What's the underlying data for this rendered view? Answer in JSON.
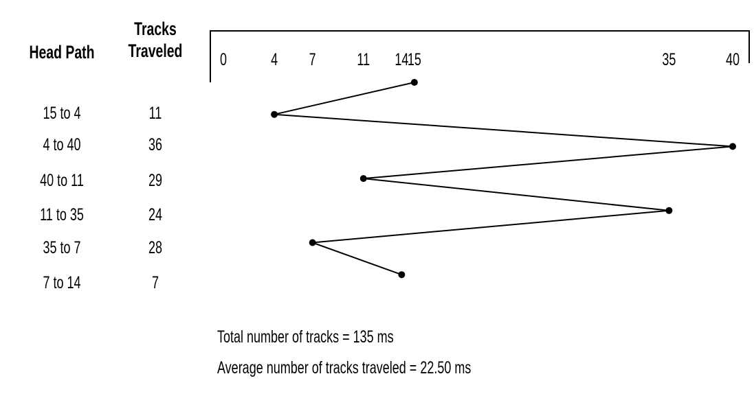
{
  "table": {
    "header_path": "Head Path",
    "header_tracks_line1": "Tracks",
    "header_tracks_line2": "Traveled",
    "rows": [
      {
        "path": "15 to 4",
        "tracks": "11"
      },
      {
        "path": "4 to 40",
        "tracks": "36"
      },
      {
        "path": "40 to 11",
        "tracks": "29"
      },
      {
        "path": "11 to 35",
        "tracks": "24"
      },
      {
        "path": "35 to 7",
        "tracks": "28"
      },
      {
        "path": "7 to 14",
        "tracks": "7"
      }
    ]
  },
  "diagram": {
    "axis_min": 0,
    "axis_max": 40,
    "tick_labels": [
      "0",
      "4",
      "7",
      "11",
      "14",
      "15",
      "35",
      "40"
    ],
    "head_sequence": [
      15,
      4,
      40,
      11,
      35,
      7,
      14
    ]
  },
  "summary": {
    "total": "Total number of tracks = 135 ms",
    "average": "Average number of tracks traveled = 22.50 ms"
  }
}
